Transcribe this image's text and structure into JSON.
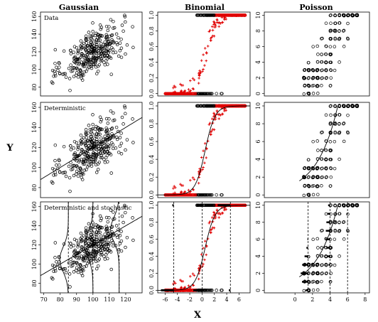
{
  "figure": {
    "column_titles": [
      "Gaussian",
      "Binomial",
      "Poisson"
    ],
    "row_labels": [
      "Data",
      "Deterministic",
      "Deterministic and stochastic"
    ],
    "xlabel": "X",
    "ylabel": "Y",
    "colors": {
      "points": "#000000",
      "binomial_points": "#e00000",
      "curve": "#000000"
    }
  },
  "chart_data": [
    {
      "type": "scatter",
      "family": "Gaussian",
      "xlim": [
        68,
        130
      ],
      "ylim": [
        70,
        165
      ],
      "xticks": [
        70,
        80,
        90,
        100,
        110,
        120
      ],
      "yticks": [
        80,
        100,
        120,
        140,
        160
      ],
      "x_range": [
        73,
        125
      ],
      "mean_line": {
        "intercept": 20,
        "slope": 1.0
      },
      "residual_sd": 13,
      "stochastic_x": [
        85,
        100,
        116
      ]
    },
    {
      "type": "scatter",
      "family": "Binomial",
      "xlim": [
        -7.2,
        7.8
      ],
      "ylim": [
        -0.03,
        1.04
      ],
      "xticks": [
        -6,
        -4,
        -2,
        0,
        2,
        4,
        6
      ],
      "yticks": [
        0.0,
        0.2,
        0.4,
        0.6,
        0.8,
        1.0
      ],
      "x_range": [
        -6,
        7
      ],
      "logistic": {
        "center": 0.5,
        "scale": 0.8
      },
      "stochastic_x": [
        -4.6,
        0,
        4.6
      ]
    },
    {
      "type": "scatter",
      "family": "Poisson",
      "xlim": [
        -3.5,
        8.5
      ],
      "ylim": [
        -0.3,
        10.4
      ],
      "xticks": [
        0,
        2,
        4,
        6,
        8
      ],
      "yticks": [
        0,
        2,
        4,
        6,
        8,
        10
      ],
      "x_range": [
        1,
        7
      ],
      "mean_curve": {
        "a": 0.25,
        "b": 0.42
      },
      "stochastic_x": [
        1.5,
        4,
        6
      ]
    }
  ]
}
